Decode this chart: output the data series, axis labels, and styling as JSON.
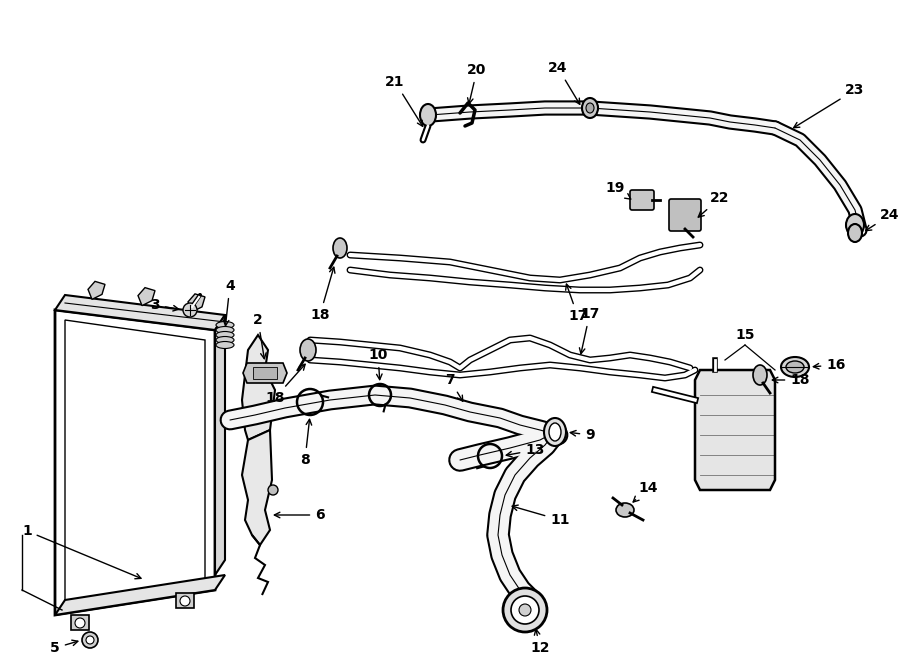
{
  "bg": "#ffffff",
  "lc": "#000000",
  "fig_w": 9.0,
  "fig_h": 6.61,
  "dpi": 100
}
